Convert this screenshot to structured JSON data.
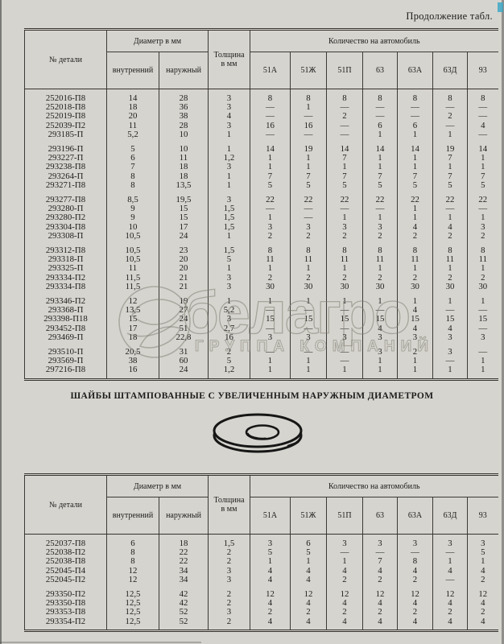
{
  "page": {
    "continuation_note": "Продолжение табл."
  },
  "section_title": "ШАЙБЫ ШТАМПОВАННЫЕ С УВЕЛИЧЕННЫМ НАРУЖНЫМ ДИАМЕТРОМ",
  "watermark": {
    "line1": "белагро",
    "line2": "ГРУППА КОМПАНИЙ"
  },
  "header": {
    "part_no": "№ детали",
    "diameter_group": "Диаметр в мм",
    "inner": "внутренний",
    "outer": "наружный",
    "thickness_line1": "Толщина",
    "thickness_line2": "в мм",
    "quantity_group": "Количество на автомобиль",
    "models": [
      "51А",
      "51Ж",
      "51П",
      "63",
      "63А",
      "63Д",
      "93"
    ]
  },
  "table1": {
    "groups": [
      [
        [
          "252016-П8",
          "14",
          "28",
          "3",
          "8",
          "8",
          "8",
          "8",
          "8",
          "8",
          "8"
        ],
        [
          "252018-П8",
          "18",
          "36",
          "3",
          "—",
          "1",
          "—",
          "—",
          "—",
          "—",
          "—"
        ],
        [
          "252019-П8",
          "20",
          "38",
          "4",
          "—",
          "—",
          "2",
          "—",
          "—",
          "2",
          "—"
        ],
        [
          "252039-П2",
          "11",
          "28",
          "3",
          "16",
          "16",
          "—",
          "6",
          "6",
          "—",
          "4"
        ],
        [
          "293185-П",
          "5,2",
          "10",
          "1",
          "—",
          "—",
          "—",
          "1",
          "1",
          "1",
          "—"
        ]
      ],
      [
        [
          "293196-П",
          "5",
          "10",
          "1",
          "14",
          "19",
          "14",
          "14",
          "14",
          "19",
          "14"
        ],
        [
          "293227-П",
          "6",
          "11",
          "1,2",
          "1",
          "1",
          "7",
          "1",
          "1",
          "7",
          "1"
        ],
        [
          "293238-П8",
          "7",
          "18",
          "3",
          "1",
          "1",
          "1",
          "1",
          "1",
          "1",
          "1"
        ],
        [
          "293264-П",
          "8",
          "18",
          "1",
          "7",
          "7",
          "7",
          "7",
          "7",
          "7",
          "7"
        ],
        [
          "293271-П8",
          "8",
          "13,5",
          "1",
          "5",
          "5",
          "5",
          "5",
          "5",
          "5",
          "5"
        ]
      ],
      [
        [
          "293277-П8",
          "8,5",
          "19,5",
          "3",
          "22",
          "22",
          "22",
          "22",
          "22",
          "22",
          "22"
        ],
        [
          "293280-П",
          "9",
          "15",
          "1,5",
          "—",
          "—",
          "—",
          "—",
          "1",
          "—",
          "—"
        ],
        [
          "293280-П2",
          "9",
          "15",
          "1,5",
          "1",
          "—",
          "1",
          "1",
          "1",
          "1",
          "1"
        ],
        [
          "293304-П8",
          "10",
          "17",
          "1,5",
          "3",
          "3",
          "3",
          "3",
          "4",
          "4",
          "3"
        ],
        [
          "293308-П",
          "10,5",
          "24",
          "1",
          "2",
          "2",
          "2",
          "2",
          "2",
          "2",
          "2"
        ]
      ],
      [
        [
          "293312-П8",
          "10,5",
          "23",
          "1,5",
          "8",
          "8",
          "8",
          "8",
          "8",
          "8",
          "8"
        ],
        [
          "293318-П",
          "10,5",
          "20",
          "5",
          "11",
          "11",
          "11",
          "11",
          "11",
          "11",
          "11"
        ],
        [
          "293325-П",
          "11",
          "20",
          "1",
          "1",
          "1",
          "1",
          "1",
          "1",
          "1",
          "1"
        ],
        [
          "293334-П2",
          "11,5",
          "21",
          "3",
          "2",
          "2",
          "2",
          "2",
          "2",
          "2",
          "2"
        ],
        [
          "293334-П8",
          "11,5",
          "21",
          "3",
          "30",
          "30",
          "30",
          "30",
          "30",
          "30",
          "30"
        ]
      ],
      [
        [
          "293346-П2",
          "12",
          "19",
          "1",
          "1",
          "1",
          "1",
          "1",
          "1",
          "1",
          "1"
        ],
        [
          "293368-П",
          "13,5",
          "27",
          "5,2",
          "—",
          "—",
          "—",
          "—",
          "4",
          "—",
          "—"
        ],
        [
          "293398-П18",
          "15",
          "24",
          "3",
          "15",
          "15",
          "15",
          "15",
          "15",
          "15",
          "15"
        ],
        [
          "293452-П8",
          "17",
          "51",
          "2,7",
          "—",
          "—",
          "—",
          "4",
          "4",
          "4",
          "—"
        ],
        [
          "293469-П",
          "18",
          "22,8",
          "16",
          "3",
          "3",
          "3",
          "3",
          "3",
          "3",
          "3"
        ]
      ],
      [
        [
          "293510-П",
          "20,5",
          "31",
          "2",
          "—",
          "—",
          "—",
          "3",
          "2",
          "3",
          "—"
        ],
        [
          "293569-П",
          "38",
          "60",
          "5",
          "1",
          "1",
          "—",
          "1",
          "1",
          "—",
          "1"
        ],
        [
          "297216-П8",
          "16",
          "24",
          "1,2",
          "1",
          "1",
          "1",
          "1",
          "1",
          "1",
          "1"
        ]
      ]
    ]
  },
  "table2": {
    "groups": [
      [
        [
          "252037-П8",
          "6",
          "18",
          "1,5",
          "3",
          "6",
          "3",
          "3",
          "3",
          "3",
          "3"
        ],
        [
          "252038-П2",
          "8",
          "22",
          "2",
          "5",
          "5",
          "—",
          "—",
          "—",
          "—",
          "5"
        ],
        [
          "252038-П8",
          "8",
          "22",
          "2",
          "1",
          "1",
          "1",
          "7",
          "8",
          "1",
          "1"
        ],
        [
          "252045-П4",
          "12",
          "34",
          "3",
          "4",
          "4",
          "4",
          "4",
          "4",
          "4",
          "4"
        ],
        [
          "252045-П2",
          "12",
          "34",
          "3",
          "4",
          "4",
          "2",
          "2",
          "2",
          "—",
          "2"
        ]
      ],
      [
        [
          "293350-П2",
          "12,5",
          "42",
          "2",
          "12",
          "12",
          "12",
          "12",
          "12",
          "12",
          "12"
        ],
        [
          "293350-П8",
          "12,5",
          "42",
          "2",
          "4",
          "4",
          "4",
          "4",
          "4",
          "4",
          "4"
        ],
        [
          "293353-П8",
          "12,5",
          "52",
          "3",
          "2",
          "2",
          "2",
          "2",
          "2",
          "2",
          "2"
        ],
        [
          "293354-П2",
          "12,5",
          "52",
          "2",
          "4",
          "4",
          "4",
          "4",
          "4",
          "4",
          "4"
        ]
      ]
    ]
  }
}
